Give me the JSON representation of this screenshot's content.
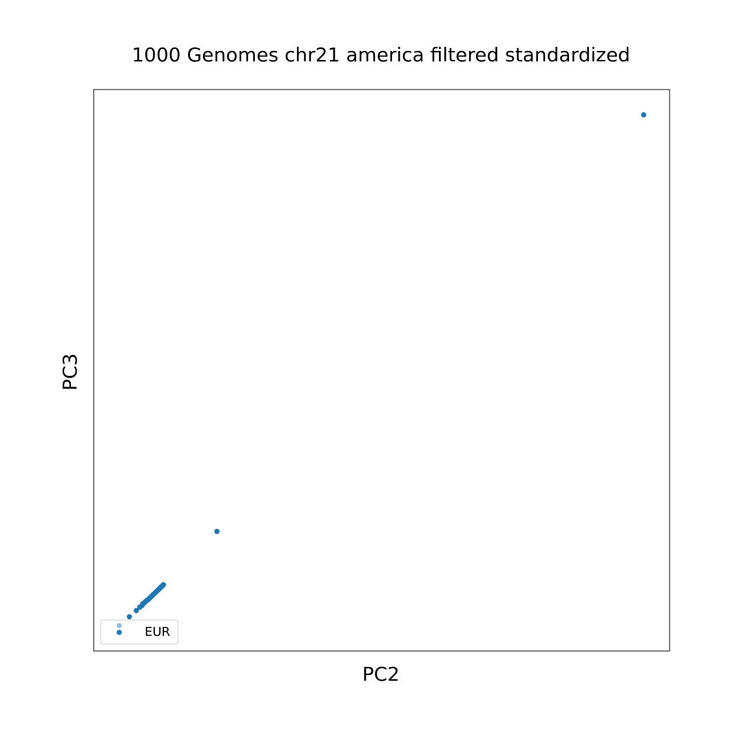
{
  "chart_data": {
    "type": "scatter",
    "title": "1000 Genomes chr21 america filtered standardized",
    "xlabel": "PC2",
    "ylabel": "PC3",
    "xlim": [
      0,
      100
    ],
    "ylim": [
      0,
      100
    ],
    "ticks_shown": false,
    "grid": false,
    "legend_position": "lower-left",
    "series": [
      {
        "name": "EUR",
        "color": "#1f77b4",
        "points": [
          [
            4.5,
            4.5
          ],
          [
            6.2,
            6.1
          ],
          [
            7.4,
            7.2
          ],
          [
            8.0,
            7.8
          ],
          [
            8.5,
            8.4
          ],
          [
            8.4,
            8.1
          ],
          [
            8.7,
            8.5
          ],
          [
            8.8,
            8.6
          ],
          [
            9.0,
            8.8
          ],
          [
            9.2,
            9.0
          ],
          [
            9.4,
            9.1
          ],
          [
            9.6,
            9.3
          ],
          [
            9.8,
            9.5
          ],
          [
            10.0,
            9.7
          ],
          [
            10.1,
            9.8
          ],
          [
            10.2,
            9.9
          ],
          [
            10.3,
            10.0
          ],
          [
            10.4,
            10.1
          ],
          [
            10.6,
            10.3
          ],
          [
            10.8,
            10.5
          ],
          [
            11.0,
            10.7
          ],
          [
            11.1,
            10.8
          ],
          [
            11.2,
            10.9
          ],
          [
            11.3,
            11.0
          ],
          [
            11.5,
            11.2
          ],
          [
            11.6,
            11.3
          ],
          [
            11.7,
            11.4
          ],
          [
            11.8,
            11.5
          ],
          [
            11.9,
            11.6
          ],
          [
            12.0,
            11.7
          ],
          [
            12.1,
            11.8
          ],
          [
            21.4,
            21.3
          ],
          [
            95.5,
            95.5
          ]
        ]
      }
    ]
  }
}
